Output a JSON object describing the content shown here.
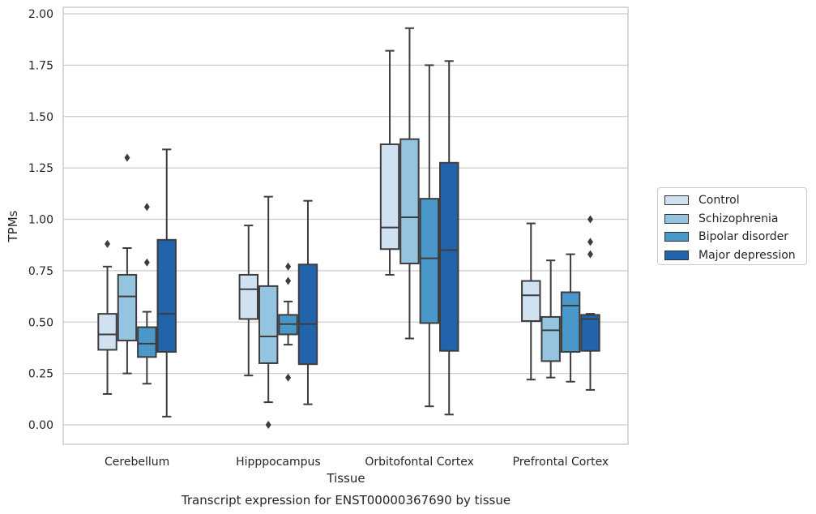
{
  "caption": "Transcript expression for ENST00000367690 by tissue",
  "chart_data": {
    "type": "box",
    "xlabel": "Tissue",
    "ylabel": "TPMs",
    "ylim": [
      -0.1,
      2.02
    ],
    "yticks": [
      "0.00",
      "0.25",
      "0.50",
      "0.75",
      "1.00",
      "1.25",
      "1.50",
      "1.75",
      "2.00"
    ],
    "grid": "horizontal",
    "legend_position": "right",
    "categories": [
      "Cerebellum",
      "Hipppocampus",
      "Orbitofontal Cortex",
      "Prefrontal Cortex"
    ],
    "series": [
      {
        "name": "Control",
        "color": "#d0e1f2",
        "boxes": [
          {
            "whislo": 0.15,
            "q1": 0.365,
            "med": 0.44,
            "q3": 0.54,
            "whishi": 0.77,
            "fliers": [
              0.88
            ]
          },
          {
            "whislo": 0.24,
            "q1": 0.515,
            "med": 0.66,
            "q3": 0.73,
            "whishi": 0.97,
            "fliers": []
          },
          {
            "whislo": 0.73,
            "q1": 0.855,
            "med": 0.96,
            "q3": 1.365,
            "whishi": 1.82,
            "fliers": []
          },
          {
            "whislo": 0.22,
            "q1": 0.505,
            "med": 0.63,
            "q3": 0.7,
            "whishi": 0.98,
            "fliers": []
          }
        ]
      },
      {
        "name": "Schizophrenia",
        "color": "#94c4df",
        "boxes": [
          {
            "whislo": 0.25,
            "q1": 0.41,
            "med": 0.625,
            "q3": 0.73,
            "whishi": 0.86,
            "fliers": [
              1.3
            ]
          },
          {
            "whislo": 0.11,
            "q1": 0.3,
            "med": 0.43,
            "q3": 0.675,
            "whishi": 1.11,
            "fliers": [
              0.0
            ]
          },
          {
            "whislo": 0.42,
            "q1": 0.785,
            "med": 1.01,
            "q3": 1.39,
            "whishi": 1.93,
            "fliers": []
          },
          {
            "whislo": 0.23,
            "q1": 0.31,
            "med": 0.46,
            "q3": 0.525,
            "whishi": 0.8,
            "fliers": []
          }
        ]
      },
      {
        "name": "Bipolar disorder",
        "color": "#4a98c9",
        "boxes": [
          {
            "whislo": 0.2,
            "q1": 0.33,
            "med": 0.395,
            "q3": 0.475,
            "whishi": 0.55,
            "fliers": [
              0.79,
              1.06
            ]
          },
          {
            "whislo": 0.39,
            "q1": 0.44,
            "med": 0.49,
            "q3": 0.535,
            "whishi": 0.6,
            "fliers": [
              0.23,
              0.7,
              0.77
            ]
          },
          {
            "whislo": 0.09,
            "q1": 0.495,
            "med": 0.81,
            "q3": 1.1,
            "whishi": 1.75,
            "fliers": []
          },
          {
            "whislo": 0.21,
            "q1": 0.355,
            "med": 0.58,
            "q3": 0.645,
            "whishi": 0.83,
            "fliers": []
          }
        ]
      },
      {
        "name": "Major depression",
        "color": "#2164ab",
        "boxes": [
          {
            "whislo": 0.04,
            "q1": 0.355,
            "med": 0.54,
            "q3": 0.9,
            "whishi": 1.34,
            "fliers": []
          },
          {
            "whislo": 0.1,
            "q1": 0.295,
            "med": 0.49,
            "q3": 0.78,
            "whishi": 1.09,
            "fliers": []
          },
          {
            "whislo": 0.05,
            "q1": 0.36,
            "med": 0.85,
            "q3": 1.275,
            "whishi": 1.77,
            "fliers": []
          },
          {
            "whislo": 0.17,
            "q1": 0.36,
            "med": 0.515,
            "q3": 0.535,
            "whishi": 0.54,
            "fliers": [
              0.83,
              0.89,
              1.0
            ]
          }
        ]
      }
    ]
  }
}
